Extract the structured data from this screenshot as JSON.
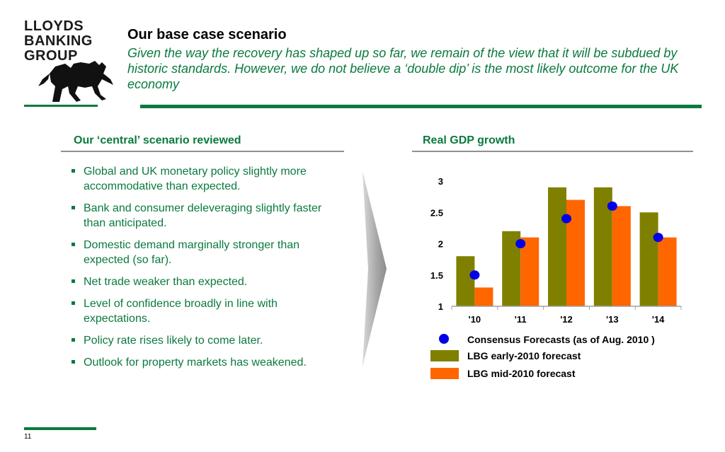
{
  "logo": {
    "lines": [
      "LLOYDS",
      "BANKING",
      "GROUP"
    ]
  },
  "header": {
    "title": "Our base case scenario",
    "subtitle": "Given the way the recovery has shaped up so far, we remain of the view that it will be subdued by historic standards. However, we do not believe a ‘double dip’ is the most likely outcome for the UK economy"
  },
  "left": {
    "title": "Our ‘central’ scenario reviewed",
    "bullets": [
      "Global and UK monetary policy slightly more accommodative than expected.",
      "Bank and consumer deleveraging slightly faster than anticipated.",
      "Domestic demand marginally stronger than expected (so far).",
      "Net trade weaker than expected.",
      "Level of confidence broadly in line with expectations.",
      "Policy rate rises likely to come later.",
      "Outlook for property markets has weakened."
    ]
  },
  "right": {
    "title": "Real GDP growth"
  },
  "colors": {
    "brand_green": "#0a7a3e",
    "olive": "#808000",
    "orange": "#ff6600",
    "dot_blue": "#0000e6"
  },
  "chart_data": {
    "type": "bar",
    "title": "Real GDP growth",
    "categories": [
      "'10",
      "'11",
      "'12",
      "'13",
      "'14"
    ],
    "ylim": [
      1,
      3
    ],
    "yticks": [
      "1",
      "1.5",
      "2",
      "2.5",
      "3"
    ],
    "ytick_values": [
      1,
      1.5,
      2,
      2.5,
      3
    ],
    "grid": false,
    "legend_placement": "bottom",
    "series": [
      {
        "name": "LBG early-2010 forecast",
        "kind": "bar",
        "color": "#808000",
        "values": [
          1.8,
          2.2,
          2.9,
          2.9,
          2.5
        ]
      },
      {
        "name": "LBG mid-2010 forecast",
        "kind": "bar",
        "color": "#ff6600",
        "values": [
          1.3,
          2.1,
          2.7,
          2.6,
          2.1
        ]
      },
      {
        "name": "Consensus Forecasts (as of Aug. 2010 )",
        "kind": "dot",
        "color": "#0000e6",
        "values": [
          1.5,
          2.0,
          2.4,
          2.6,
          2.1
        ]
      }
    ]
  },
  "footer": {
    "page": "11"
  }
}
